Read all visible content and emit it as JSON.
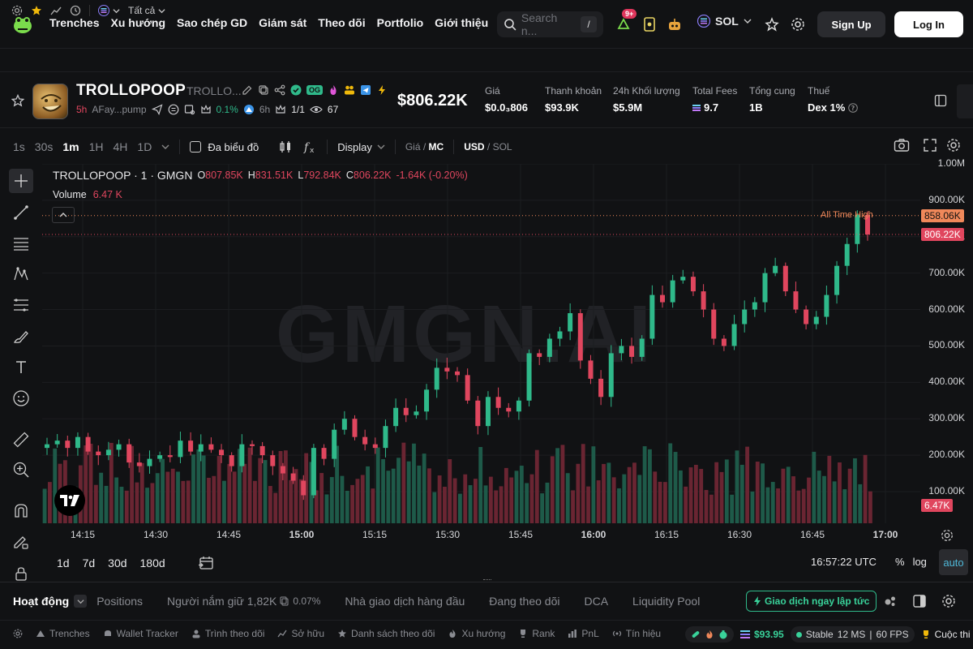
{
  "nav": {
    "links": [
      "Trenches",
      "Xu hướng",
      "Sao chép GD",
      "Giám sát",
      "Theo dõi",
      "Portfolio",
      "Giới thiệu"
    ],
    "search_placeholder": "Search n...",
    "search_shortcut": "/",
    "notif_badge": "9+",
    "chain": "SOL",
    "signup": "Sign Up",
    "login": "Log In"
  },
  "subbar": {
    "filter": "Tất cả"
  },
  "token": {
    "name": "TROLLOPOOP",
    "symbol": "TROLLO...",
    "age": "5h",
    "address": "AFay...pump",
    "og_badge": "OG",
    "holders_pct": "0.1%",
    "snipers": "6h",
    "top": "1/1",
    "views": "67",
    "market_cap": "$806.22K"
  },
  "stats": [
    {
      "label": "Giá",
      "value": "$0.0₃806"
    },
    {
      "label": "Thanh khoản",
      "value": "$93.9K"
    },
    {
      "label": "24h Khối lượng",
      "value": "$5.9M"
    },
    {
      "label": "Total Fees",
      "value": "9.7"
    },
    {
      "label": "Tổng cung",
      "value": "1B"
    },
    {
      "label": "Thuế",
      "value": "Dex 1%"
    }
  ],
  "chart_toolbar": {
    "intervals": [
      "1s",
      "30s",
      "1m",
      "1H",
      "4H",
      "1D"
    ],
    "active_interval": "1m",
    "multi_chart": "Đa biểu đồ",
    "display": "Display",
    "price_mc_a": "Giá",
    "price_mc_b": "MC",
    "usd_sol_a": "USD",
    "usd_sol_b": "SOL"
  },
  "legend": {
    "title": "TROLLOPOOP · 1 · GMGN",
    "o_label": "O",
    "o": "807.85K",
    "h_label": "H",
    "h": "831.51K",
    "l_label": "L",
    "l": "792.84K",
    "c_label": "C",
    "c": "806.22K",
    "change": "-1.64K (-0.20%)",
    "volume_label": "Volume",
    "volume": "6.47 K"
  },
  "watermark": "GMGN.AI",
  "ath_label": "All Time High",
  "chart_data": {
    "type": "candlestick",
    "title": "TROLLOPOOP · 1 · GMGN",
    "y_ticks": [
      "1.00M",
      "900.00K",
      "800.00K",
      "700.00K",
      "600.00K",
      "500.00K",
      "400.00K",
      "300.00K",
      "200.00K",
      "100.00K"
    ],
    "x_ticks": [
      "14:15",
      "14:30",
      "14:45",
      "15:00",
      "15:15",
      "15:30",
      "15:45",
      "16:00",
      "16:15",
      "16:30",
      "16:45",
      "17:00"
    ],
    "ylim": [
      0,
      1000000
    ],
    "ath_value": "858.06K",
    "last_value": "806.22K",
    "last_volume": "6.47K",
    "close_path": [
      230,
      240,
      220,
      250,
      210,
      200,
      215,
      230,
      180,
      170,
      190,
      200,
      195,
      240,
      210,
      230,
      215,
      200,
      170,
      230,
      225,
      200,
      170,
      150,
      130,
      90,
      220,
      190,
      270,
      300,
      250,
      230,
      220,
      280,
      330,
      310,
      320,
      380,
      440,
      430,
      420,
      350,
      280,
      360,
      330,
      320,
      350,
      480,
      470,
      520,
      540,
      590,
      460,
      410,
      360,
      480,
      500,
      470,
      520,
      640,
      620,
      680,
      690,
      650,
      600,
      520,
      500,
      560,
      600,
      620,
      700,
      720,
      650,
      600,
      560,
      580,
      640,
      720,
      780,
      860,
      806
    ]
  },
  "range_buttons": [
    "1d",
    "7d",
    "30d",
    "180d"
  ],
  "clock": "16:57:22 UTC",
  "scale": {
    "pct": "%",
    "log": "log",
    "auto": "auto"
  },
  "bottom_tabs": [
    "Hoạt động",
    "Positions",
    "Người nắm giữ 1,82K",
    "Nhà giao dịch hàng đầu",
    "Đang theo dõi",
    "DCA",
    "Liquidity Pool"
  ],
  "holders_pct": "0.07%",
  "trade_now": "Giao dịch ngay lập tức",
  "status_items": [
    "Trenches",
    "Wallet Tracker",
    "Trình theo dõi",
    "Sở hữu",
    "Danh sách theo dõi",
    "Xu hướng",
    "Rank",
    "PnL",
    "Tín hiệu"
  ],
  "status_right": {
    "balance": "$93.95",
    "stable": "Stable",
    "latency": "12 MS",
    "fps": "60 FPS",
    "contest": "Cuộc thi"
  }
}
